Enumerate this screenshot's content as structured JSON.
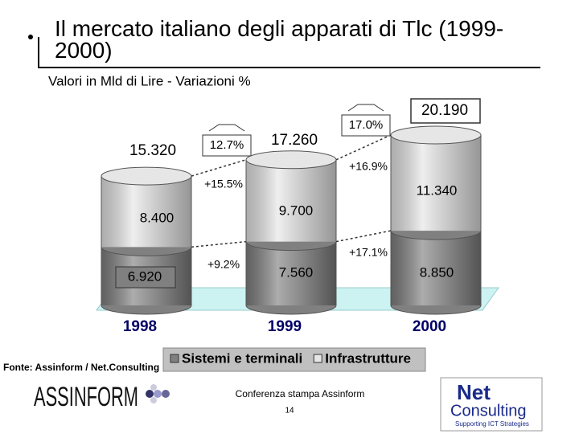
{
  "chart_data": {
    "type": "bar",
    "stacked": true,
    "title": "Il mercato italiano degli apparati di Tlc (1999-2000)",
    "subtitle": "Valori in Mld di Lire - Variazioni %",
    "categories": [
      "1998",
      "1999",
      "2000"
    ],
    "series": [
      {
        "name": "Sistemi e terminali",
        "color": "#808080",
        "values": [
          6920,
          7560,
          8850
        ],
        "value_labels": [
          "6.920",
          "7.560",
          "8.850"
        ]
      },
      {
        "name": "Infrastrutture",
        "color": "#e6e6e6",
        "values": [
          8400,
          9700,
          11340
        ],
        "value_labels": [
          "8.400",
          "9.700",
          "11.340"
        ]
      }
    ],
    "totals": {
      "values": [
        15320,
        17260,
        20190
      ],
      "value_labels": [
        "15.320",
        "17.260",
        "20.190"
      ]
    },
    "total_growth": [
      "12.7%",
      "17.0%"
    ],
    "series_growth": [
      [
        "+9.2%",
        "+17.1%"
      ],
      [
        "+15.5%",
        "+16.9%"
      ]
    ],
    "source": "Fonte: Assinform / Net.Consulting",
    "footer": {
      "event": "Conferenza stampa Assinform",
      "page": "14"
    },
    "logos": {
      "assinform": "ASSINFORM",
      "net": "Net",
      "consulting": "Consulting",
      "tagline": "Supporting ICT Strategies"
    }
  }
}
